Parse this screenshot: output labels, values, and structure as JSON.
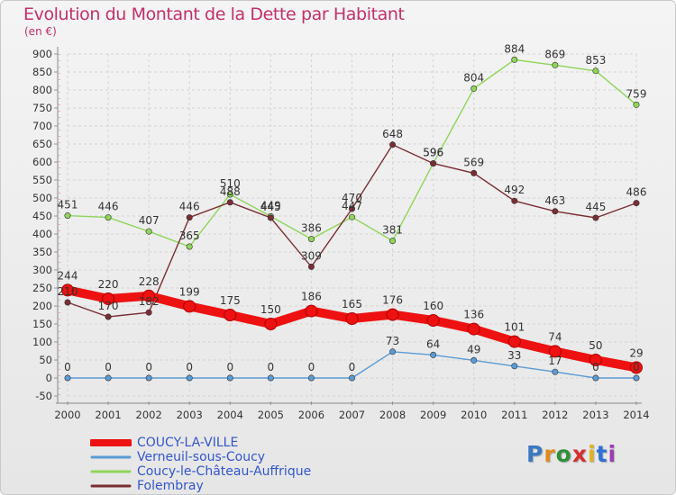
{
  "header": {
    "title": "Evolution du Montant de la Dette par Habitant",
    "subtitle": "(en €)"
  },
  "brand": {
    "name": "Proxiti",
    "letter_colors": [
      "#3a78c2",
      "#e08a1e",
      "#2f8f3a",
      "#d62f2f",
      "#e0b21e",
      "#2f6fd6",
      "#9a3fb0"
    ]
  },
  "chart_data": {
    "type": "line",
    "title": "Evolution du Montant de la Dette par Habitant",
    "subtitle": "(en €)",
    "xlabel": "",
    "ylabel": "",
    "x": [
      "2000",
      "2001",
      "2002",
      "2003",
      "2004",
      "2005",
      "2006",
      "2007",
      "2008",
      "2009",
      "2010",
      "2011",
      "2012",
      "2013",
      "2014"
    ],
    "ylim": [
      -50,
      900
    ],
    "yticks": [
      -50,
      0,
      50,
      100,
      150,
      200,
      250,
      300,
      350,
      400,
      450,
      500,
      550,
      600,
      650,
      700,
      750,
      800,
      850,
      900
    ],
    "grid": true,
    "legend_position": "bottom-left",
    "series": [
      {
        "name": "COUCY-LA-VILLE",
        "color": "#ee1111",
        "values": [
          244,
          220,
          228,
          199,
          175,
          150,
          186,
          165,
          176,
          160,
          136,
          101,
          74,
          50,
          29
        ],
        "labels": [
          "244",
          "220",
          "228",
          "199",
          "175",
          "150",
          "186",
          "165",
          "176",
          "160",
          "136",
          "101",
          "74",
          "50",
          "29"
        ]
      },
      {
        "name": "Verneuil-sous-Coucy",
        "color": "#5b9bd5",
        "values": [
          0,
          0,
          0,
          0,
          0,
          0,
          0,
          0,
          73,
          64,
          49,
          33,
          17,
          0,
          0
        ],
        "labels": [
          "0",
          "0",
          "0",
          "0",
          "0",
          "0",
          "0",
          "0",
          "73",
          "64",
          "49",
          "33",
          "17",
          "0",
          "0"
        ]
      },
      {
        "name": "Coucy-le-Château-Auffrique",
        "color": "#8fd55a",
        "values": [
          451,
          446,
          407,
          365,
          510,
          449,
          386,
          447,
          381,
          596,
          804,
          884,
          869,
          853,
          759
        ],
        "labels": [
          "451",
          "446",
          "407",
          "365",
          "510",
          "449",
          "386",
          "447",
          "381",
          "596",
          "804",
          "884",
          "869",
          "853",
          "759"
        ]
      },
      {
        "name": "Folembray",
        "color": "#7a2e34",
        "values": [
          210,
          170,
          182,
          446,
          488,
          445,
          309,
          470,
          648,
          596,
          569,
          492,
          463,
          445,
          486
        ],
        "labels": [
          "210",
          "170",
          "182",
          "446",
          "488",
          "445",
          "309",
          "470",
          "648",
          "596",
          "569",
          "492",
          "463",
          "445",
          "486"
        ]
      }
    ]
  }
}
